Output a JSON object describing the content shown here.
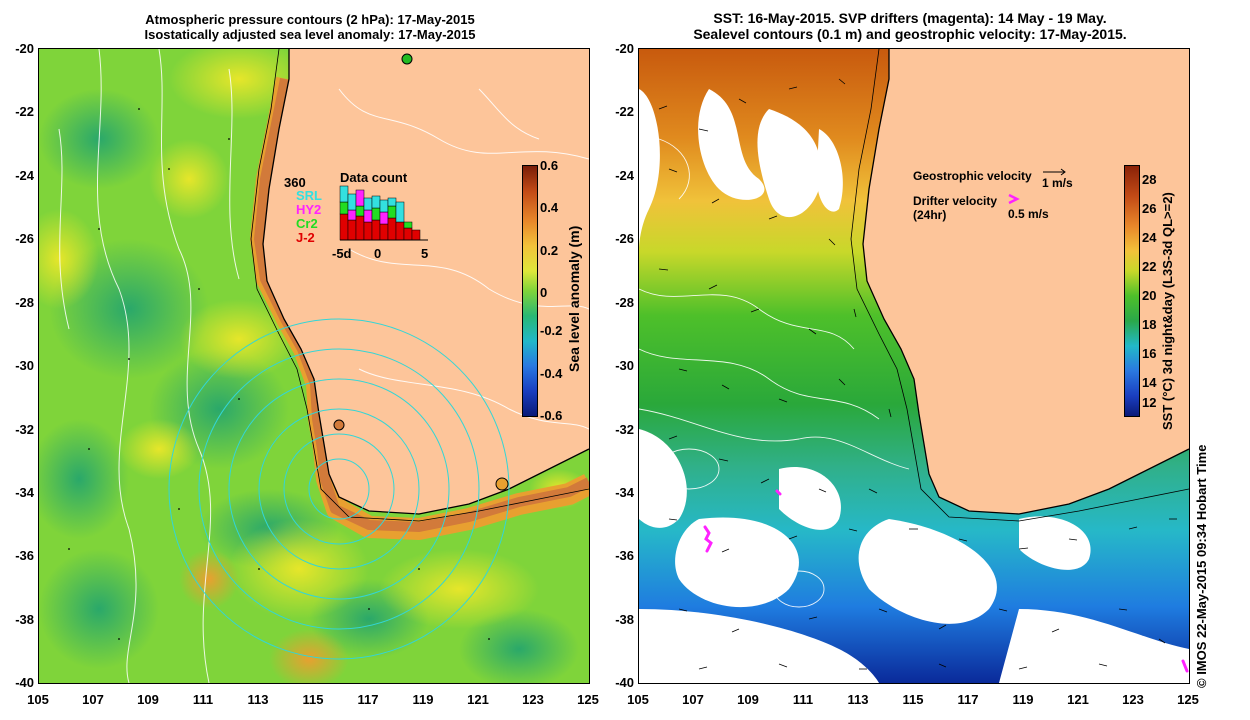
{
  "left_panel": {
    "title_line1": "Atmospheric pressure contours (2 hPa): 17-May-2015",
    "title_line2": "Isostatically adjusted sea level anomaly: 17-May-2015",
    "colorbar_label": "Sea level anomaly (m)",
    "colorbar_ticks": [
      "0.6",
      "0.4",
      "0.2",
      "0",
      "-0.2",
      "-0.4",
      "-0.6"
    ],
    "inset": {
      "count": "360",
      "title": "Data count",
      "series": [
        {
          "name": "SRL",
          "color": "#33e0e0"
        },
        {
          "name": "HY2",
          "color": "#ff22ff"
        },
        {
          "name": "Cr2",
          "color": "#22dd22"
        },
        {
          "name": "J-2",
          "color": "#e00000"
        }
      ],
      "x_ticks": [
        "-5d",
        "0",
        "5"
      ]
    }
  },
  "right_panel": {
    "title_line1": "SST: 16-May-2015. SVP drifters (magenta): 14 May - 19 May.",
    "title_line2": "Sealevel contours (0.1 m) and geostrophic velocity: 17-May-2015.",
    "geo_label": "Geostrophic velocity",
    "geo_scale": "1 m/s",
    "drifter_label": "Drifter velocity",
    "drifter_sub": "(24hr)",
    "drifter_scale": "0.5 m/s",
    "colorbar_label": "SST (°C) 3d night&day (L3S-3d QL>=2)",
    "colorbar_ticks": [
      "28",
      "26",
      "24",
      "22",
      "20",
      "18",
      "16",
      "14",
      "12"
    ]
  },
  "axes": {
    "lat_ticks": [
      "-20",
      "-22",
      "-24",
      "-26",
      "-28",
      "-30",
      "-32",
      "-34",
      "-36",
      "-38",
      "-40"
    ],
    "lon_ticks": [
      "105",
      "107",
      "109",
      "111",
      "113",
      "115",
      "117",
      "119",
      "121",
      "123",
      "125"
    ]
  },
  "credit": "© IMOS 22-May-2015 09:34 Hobart Time",
  "colors": {
    "land": "#fdc59a",
    "ocean_sla": "#7fd43a",
    "ocean_sst": "#ffffff",
    "coast_anomaly": "#d27a3a",
    "contour_white": "#ffffff",
    "contour_cyan": "#33d6d6"
  }
}
